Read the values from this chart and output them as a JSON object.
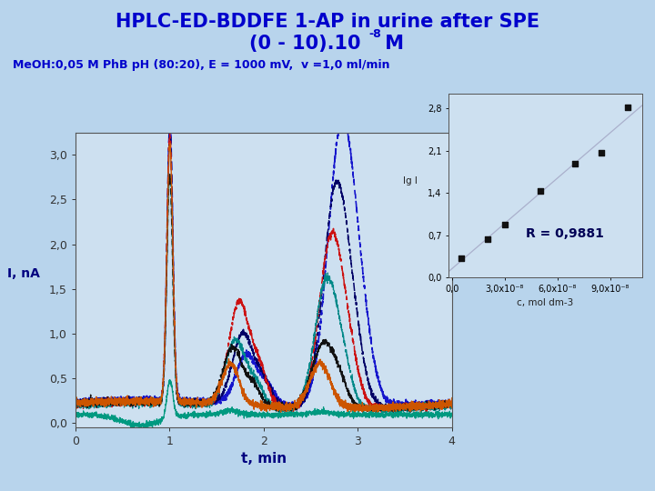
{
  "title_line1": "HPLC-ED-BDDFE 1-AP in urine after SPE",
  "title_line2_base": "(0 - 10).10",
  "title_line2_sup": "-8",
  "title_line2_end": " M",
  "subtitle": "MeOH:0,05 M PhB pH (80:20), E = 1000 mV,  v =1,0 ml/min",
  "xlabel": "t, min",
  "ylabel": "I, nA",
  "xlim": [
    0,
    4
  ],
  "ylim": [
    -0.05,
    3.25
  ],
  "yticks": [
    0.0,
    0.5,
    1.0,
    1.5,
    2.0,
    2.5,
    3.0
  ],
  "ytick_labels": [
    "0,0",
    "0,5",
    "1,0",
    "1,5",
    "2,0",
    "2,5",
    "3,0"
  ],
  "xticks": [
    0,
    1,
    2,
    3,
    4
  ],
  "bg_color": "#b8d4ec",
  "plot_bg": "#cde0f0",
  "inset_bg": "#cde0f0",
  "r_value": "R = 0,9881",
  "inset_xlabel": "c, mol dm-3",
  "inset_ylabel": "lg I",
  "inset_yticks": [
    0.0,
    0.7,
    1.4,
    2.1,
    2.8
  ],
  "inset_ytick_labels": [
    "0,0",
    "0,7",
    "1,4",
    "2,1",
    "2,8"
  ],
  "inset_xtick_labels": [
    "0,0",
    "3,0x10-8",
    "6,0x10-8",
    "9,0x10-8"
  ],
  "scatter_x": [
    5e-09,
    2e-08,
    3e-08,
    5e-08,
    7e-08,
    8.5e-08,
    1e-07
  ],
  "scatter_y": [
    0.32,
    0.63,
    0.88,
    1.43,
    1.88,
    2.07,
    2.82
  ],
  "title_color": "#0000cc",
  "subtitle_color": "#0000cc",
  "axis_label_color": "#000080",
  "tick_label_color": "#222244"
}
